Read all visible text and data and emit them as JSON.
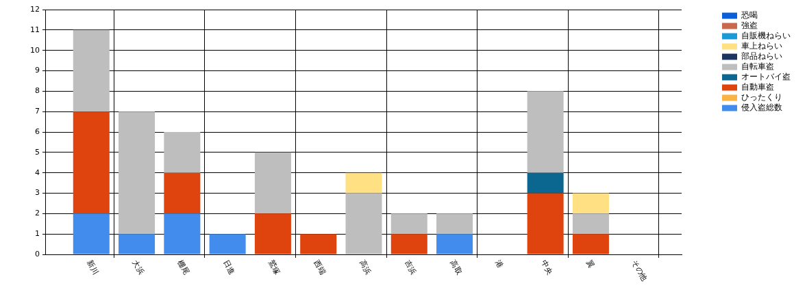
{
  "chart_data": {
    "type": "bar",
    "stacked": true,
    "categories": [
      "新川",
      "大浜",
      "棚尾",
      "日進",
      "鷲塚",
      "西端",
      "高浜",
      "吉浜",
      "高取",
      "港",
      "中央",
      "翼",
      "その他"
    ],
    "series": [
      {
        "name": "侵入盗総数",
        "color": "#428ced",
        "values": [
          2,
          1,
          2,
          1,
          0,
          0,
          0,
          0,
          1,
          0,
          0,
          0,
          0
        ]
      },
      {
        "name": "ひったくり",
        "color": "#fbb444",
        "values": [
          0,
          0,
          0,
          0,
          0,
          0,
          0,
          0,
          0,
          0,
          0,
          0,
          0
        ]
      },
      {
        "name": "自動車盗",
        "color": "#e0440e",
        "values": [
          5,
          0,
          2,
          0,
          2,
          1,
          0,
          1,
          0,
          0,
          3,
          1,
          0
        ]
      },
      {
        "name": "オートバイ盗",
        "color": "#0b6690",
        "values": [
          0,
          0,
          0,
          0,
          0,
          0,
          0,
          0,
          0,
          0,
          1,
          0,
          0
        ]
      },
      {
        "name": "自転車盗",
        "color": "#bebebe",
        "values": [
          4,
          6,
          2,
          0,
          3,
          0,
          3,
          1,
          1,
          0,
          4,
          1,
          0
        ]
      },
      {
        "name": "部品ねらい",
        "color": "#1c3560",
        "values": [
          0,
          0,
          0,
          0,
          0,
          0,
          0,
          0,
          0,
          0,
          0,
          0,
          0
        ]
      },
      {
        "name": "車上ねらい",
        "color": "#ffe082",
        "values": [
          0,
          0,
          0,
          0,
          0,
          0,
          1,
          0,
          0,
          0,
          0,
          1,
          0
        ]
      },
      {
        "name": "自販機ねらい",
        "color": "#1a9ad6",
        "values": [
          0,
          0,
          0,
          0,
          0,
          0,
          0,
          0,
          0,
          0,
          0,
          0,
          0
        ]
      },
      {
        "name": "強盗",
        "color": "#c8694c",
        "values": [
          0,
          0,
          0,
          0,
          0,
          0,
          0,
          0,
          0,
          0,
          0,
          0,
          0
        ]
      },
      {
        "name": "恐喝",
        "color": "#0a5fd6",
        "values": [
          0,
          0,
          0,
          0,
          0,
          0,
          0,
          0,
          0,
          0,
          0,
          0,
          0
        ]
      }
    ],
    "ylim": [
      0,
      12
    ],
    "yticks": [
      0,
      1,
      2,
      3,
      4,
      5,
      6,
      7,
      8,
      9,
      10,
      11,
      12
    ],
    "grid": true,
    "legend": "top right"
  }
}
